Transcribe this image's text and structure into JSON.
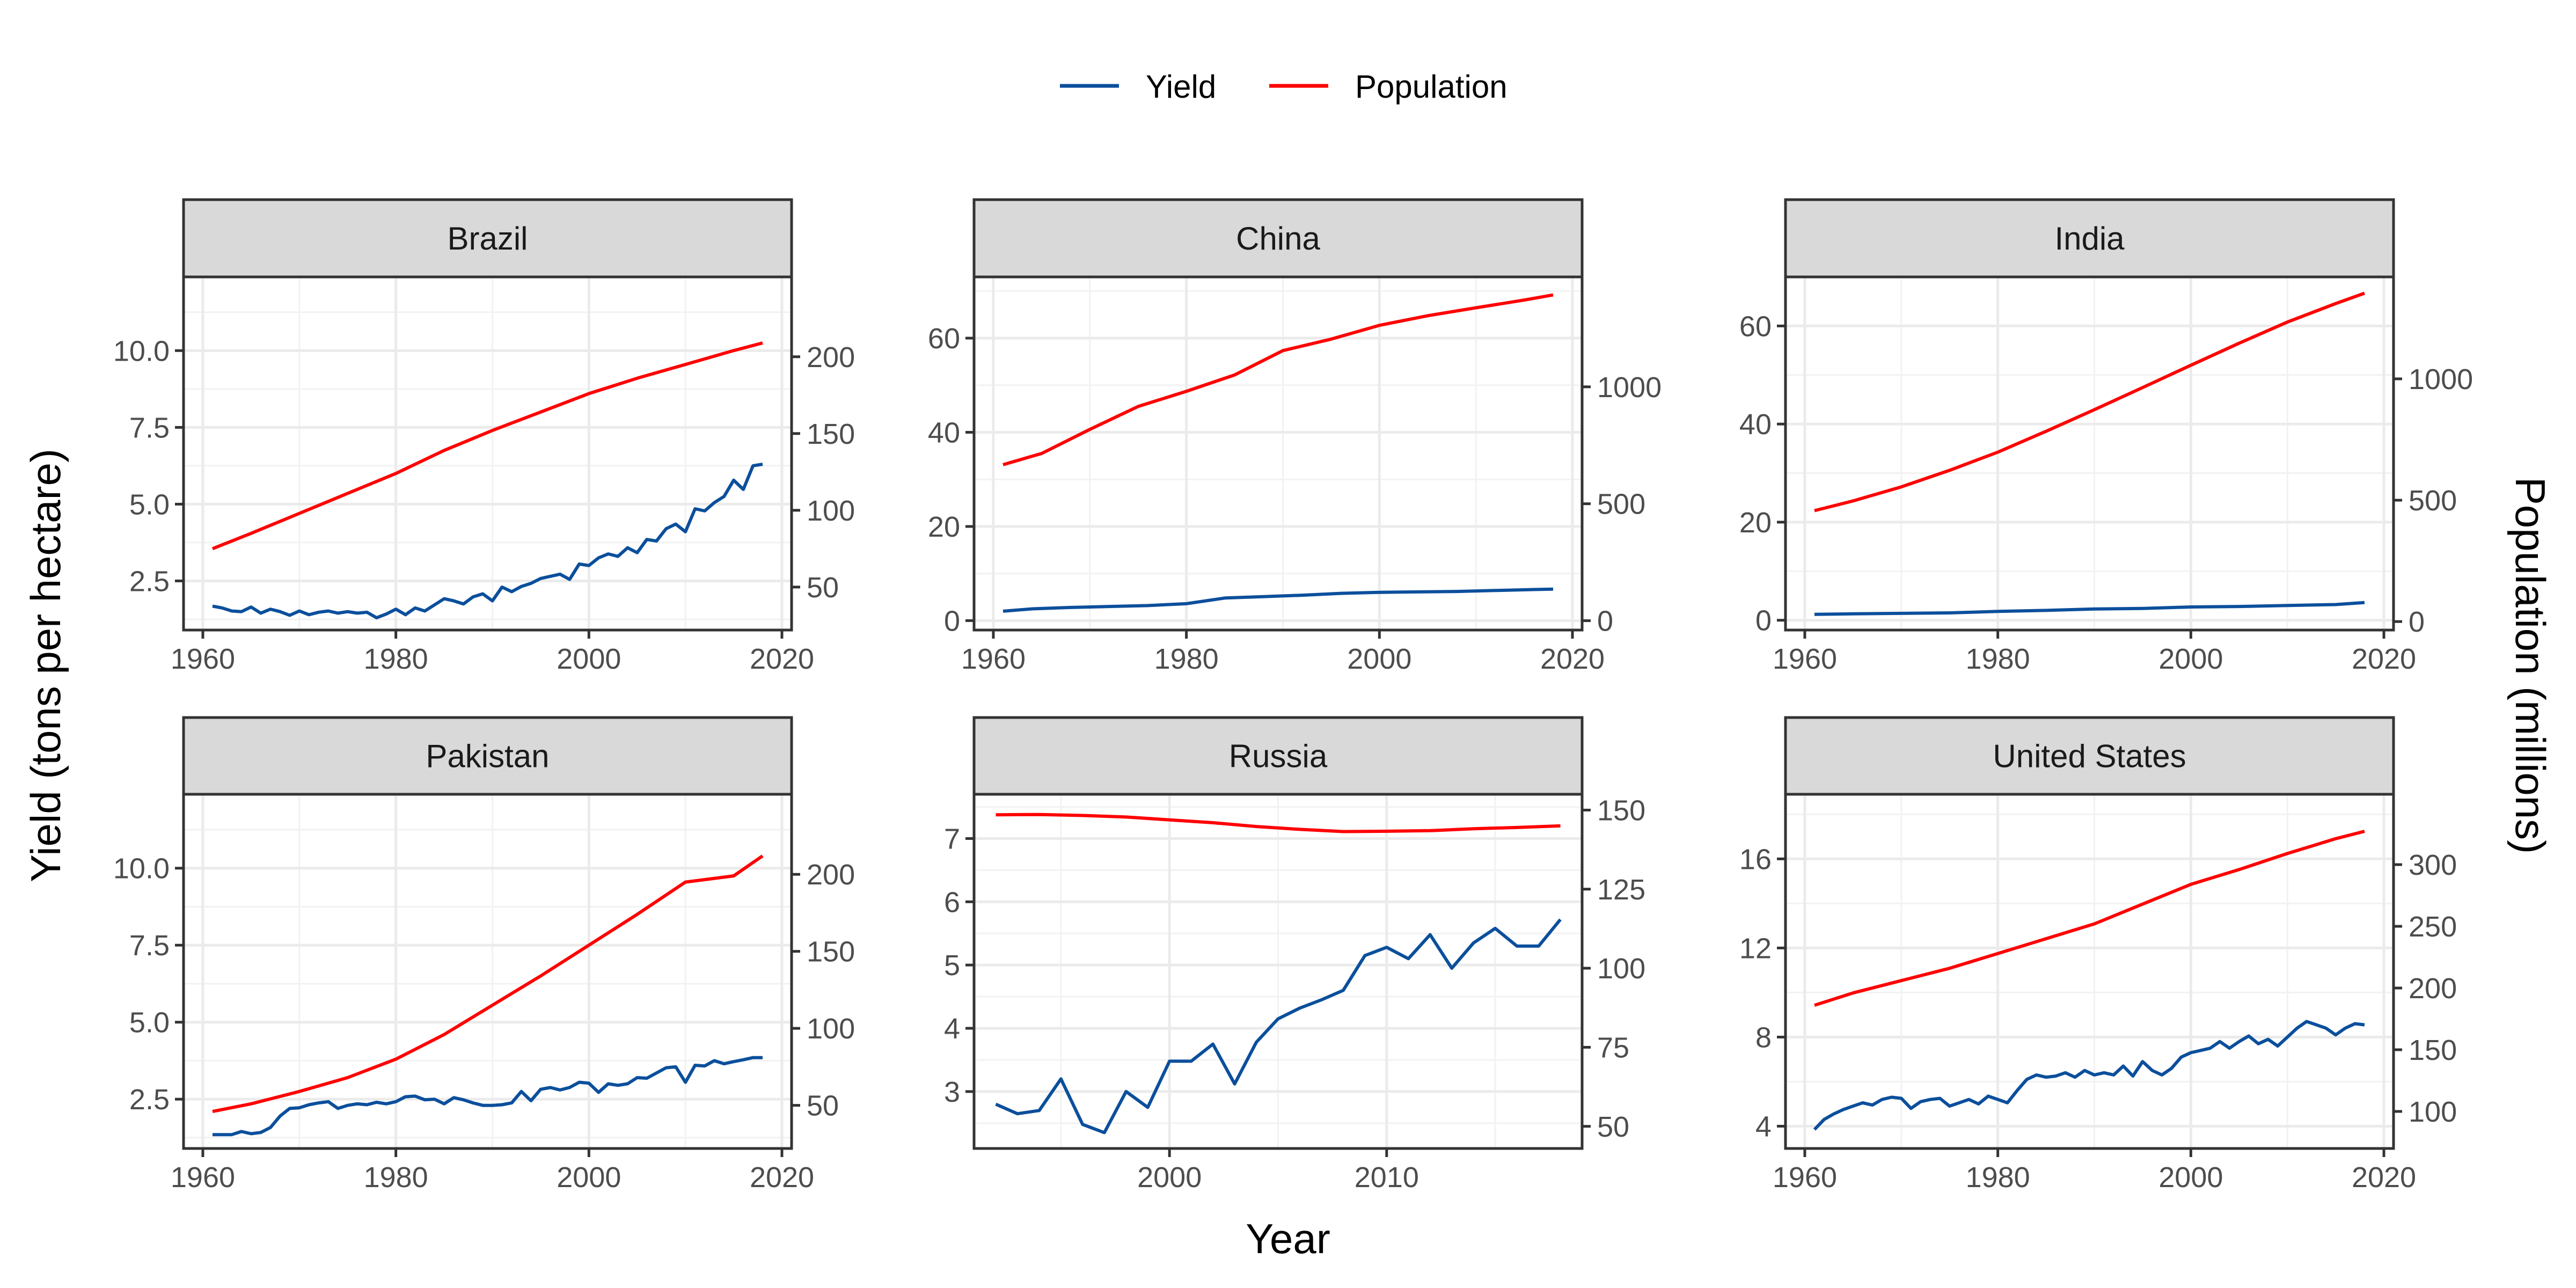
{
  "chart_data": {
    "type": "line",
    "title": "",
    "xlabel": "Year",
    "ylabel": "Yield (tons per hectare)",
    "ylabel_right": "Population (millions)",
    "grid": true,
    "legend_position": "top",
    "legend": [
      {
        "name": "Yield",
        "color": "#0b4f9c"
      },
      {
        "name": "Population",
        "color": "#ff0000"
      }
    ],
    "facets": [
      {
        "name": "Brazil",
        "xlim": [
          1958,
          2021
        ],
        "xticks": [
          1960,
          1980,
          2000,
          2020
        ],
        "ylim": [
          0.9,
          12.4
        ],
        "yticks": [
          2.5,
          5.0,
          7.5,
          10.0
        ],
        "ytick_labels": [
          "2.5",
          "5.0",
          "7.5",
          "10.0"
        ],
        "y2lim": [
          22,
          252
        ],
        "y2ticks": [
          50,
          100,
          150,
          200
        ],
        "yield": {
          "x": [
            1961,
            1962,
            1963,
            1964,
            1965,
            1966,
            1967,
            1968,
            1969,
            1970,
            1971,
            1972,
            1973,
            1974,
            1975,
            1976,
            1977,
            1978,
            1979,
            1980,
            1981,
            1982,
            1983,
            1984,
            1985,
            1986,
            1987,
            1988,
            1989,
            1990,
            1991,
            1992,
            1993,
            1994,
            1995,
            1996,
            1997,
            1998,
            1999,
            2000,
            2001,
            2002,
            2003,
            2004,
            2005,
            2006,
            2007,
            2008,
            2009,
            2010,
            2011,
            2012,
            2013,
            2014,
            2015,
            2016,
            2017,
            2018
          ],
          "y": [
            1.68,
            1.62,
            1.52,
            1.5,
            1.65,
            1.45,
            1.58,
            1.5,
            1.38,
            1.52,
            1.4,
            1.48,
            1.52,
            1.45,
            1.5,
            1.45,
            1.48,
            1.3,
            1.42,
            1.58,
            1.4,
            1.62,
            1.52,
            1.72,
            1.92,
            1.85,
            1.75,
            1.98,
            2.08,
            1.85,
            2.3,
            2.15,
            2.32,
            2.42,
            2.58,
            2.65,
            2.72,
            2.55,
            3.05,
            3.0,
            3.25,
            3.38,
            3.3,
            3.58,
            3.42,
            3.85,
            3.8,
            4.2,
            4.35,
            4.1,
            4.85,
            4.78,
            5.05,
            5.25,
            5.78,
            5.48,
            6.25,
            6.3
          ]
        },
        "population": {
          "x": [
            1961,
            1965,
            1970,
            1975,
            1980,
            1985,
            1990,
            1995,
            2000,
            2005,
            2010,
            2015,
            2018
          ],
          "y": [
            75,
            85,
            98,
            111,
            124,
            139,
            152,
            164,
            176,
            186,
            195,
            204,
            209
          ]
        }
      },
      {
        "name": "China",
        "xlim": [
          1958,
          2021
        ],
        "xticks": [
          1960,
          1980,
          2000,
          2020
        ],
        "ylim": [
          -2,
          73
        ],
        "yticks": [
          0,
          20,
          40,
          60
        ],
        "ytick_labels": [
          "0",
          "20",
          "40",
          "60"
        ],
        "y2lim": [
          -40,
          1470
        ],
        "y2ticks": [
          0,
          500,
          1000
        ],
        "yield": {
          "x": [
            1961,
            1964,
            1968,
            1972,
            1976,
            1980,
            1984,
            1988,
            1992,
            1996,
            2000,
            2004,
            2008,
            2012,
            2016,
            2018
          ],
          "y": [
            2.0,
            2.5,
            2.8,
            3.0,
            3.2,
            3.6,
            4.8,
            5.1,
            5.4,
            5.8,
            6.0,
            6.1,
            6.2,
            6.4,
            6.6,
            6.7
          ]
        },
        "population": {
          "x": [
            1961,
            1965,
            1970,
            1975,
            1980,
            1985,
            1990,
            1995,
            2000,
            2005,
            2010,
            2015,
            2018
          ],
          "y": [
            667,
            715,
            818,
            916,
            981,
            1051,
            1155,
            1204,
            1263,
            1304,
            1338,
            1371,
            1393
          ]
        }
      },
      {
        "name": "India",
        "xlim": [
          1958,
          2021
        ],
        "xticks": [
          1960,
          1980,
          2000,
          2020
        ],
        "ylim": [
          -2,
          70
        ],
        "yticks": [
          0,
          20,
          40,
          60
        ],
        "ytick_labels": [
          "0",
          "20",
          "40",
          "60"
        ],
        "y2lim": [
          -35,
          1420
        ],
        "y2ticks": [
          0,
          500,
          1000
        ],
        "yield": {
          "x": [
            1961,
            1965,
            1970,
            1975,
            1980,
            1985,
            1990,
            1995,
            2000,
            2005,
            2010,
            2015,
            2018
          ],
          "y": [
            1.2,
            1.3,
            1.4,
            1.5,
            1.8,
            2.0,
            2.3,
            2.4,
            2.7,
            2.8,
            3.0,
            3.2,
            3.6
          ]
        },
        "population": {
          "x": [
            1961,
            1965,
            1970,
            1975,
            1980,
            1985,
            1990,
            1995,
            2000,
            2005,
            2010,
            2015,
            2018
          ],
          "y": [
            457,
            497,
            555,
            623,
            698,
            784,
            873,
            964,
            1056,
            1147,
            1234,
            1310,
            1353
          ]
        }
      },
      {
        "name": "Pakistan",
        "xlim": [
          1958,
          2021
        ],
        "xticks": [
          1960,
          1980,
          2000,
          2020
        ],
        "ylim": [
          0.9,
          12.4
        ],
        "yticks": [
          2.5,
          5.0,
          7.5,
          10.0
        ],
        "ytick_labels": [
          "2.5",
          "5.0",
          "7.5",
          "10.0"
        ],
        "y2lim": [
          22,
          252
        ],
        "y2ticks": [
          50,
          100,
          150,
          200
        ],
        "yield": {
          "x": [
            1961,
            1962,
            1963,
            1964,
            1965,
            1966,
            1967,
            1968,
            1969,
            1970,
            1971,
            1972,
            1973,
            1974,
            1975,
            1976,
            1977,
            1978,
            1979,
            1980,
            1981,
            1982,
            1983,
            1984,
            1985,
            1986,
            1987,
            1988,
            1989,
            1990,
            1991,
            1992,
            1993,
            1994,
            1995,
            1996,
            1997,
            1998,
            1999,
            2000,
            2001,
            2002,
            2003,
            2004,
            2005,
            2006,
            2007,
            2008,
            2009,
            2010,
            2011,
            2012,
            2013,
            2014,
            2015,
            2016,
            2017,
            2018
          ],
          "y": [
            1.35,
            1.35,
            1.35,
            1.45,
            1.38,
            1.42,
            1.58,
            1.95,
            2.2,
            2.22,
            2.32,
            2.38,
            2.42,
            2.2,
            2.3,
            2.35,
            2.32,
            2.4,
            2.35,
            2.42,
            2.58,
            2.6,
            2.48,
            2.5,
            2.35,
            2.55,
            2.48,
            2.38,
            2.3,
            2.3,
            2.32,
            2.38,
            2.75,
            2.45,
            2.82,
            2.88,
            2.8,
            2.88,
            3.05,
            3.02,
            2.72,
            3.0,
            2.95,
            3.0,
            3.2,
            3.18,
            3.35,
            3.52,
            3.55,
            3.05,
            3.6,
            3.58,
            3.75,
            3.65,
            3.72,
            3.78,
            3.85,
            3.85
          ]
        },
        "population": {
          "x": [
            1961,
            1965,
            1970,
            1975,
            1980,
            1985,
            1990,
            1995,
            2000,
            2005,
            2010,
            2015,
            2018
          ],
          "y": [
            46,
            51,
            59,
            68,
            80,
            96,
            115,
            134,
            154,
            174,
            195,
            199,
            212
          ]
        }
      },
      {
        "name": "Russia",
        "xlim": [
          1991,
          2019
        ],
        "xticks": [
          2000,
          2010
        ],
        "ylim": [
          2.1,
          7.7
        ],
        "yticks": [
          3,
          4,
          5,
          6,
          7
        ],
        "ytick_labels": [
          "3",
          "4",
          "5",
          "6",
          "7"
        ],
        "y2lim": [
          43,
          155
        ],
        "y2ticks": [
          50,
          75,
          100,
          125,
          150
        ],
        "yield": {
          "x": [
            1992,
            1993,
            1994,
            1995,
            1996,
            1997,
            1998,
            1999,
            2000,
            2001,
            2002,
            2003,
            2004,
            2005,
            2006,
            2007,
            2008,
            2009,
            2010,
            2011,
            2012,
            2013,
            2014,
            2015,
            2016,
            2017,
            2018
          ],
          "y": [
            2.8,
            2.65,
            2.7,
            3.2,
            2.48,
            2.35,
            3.0,
            2.75,
            3.48,
            3.48,
            3.75,
            3.12,
            3.78,
            4.15,
            4.32,
            4.45,
            4.6,
            5.15,
            5.28,
            5.1,
            5.48,
            4.95,
            5.35,
            5.58,
            5.3,
            5.3,
            5.72
          ]
        },
        "population": {
          "x": [
            1992,
            1994,
            1996,
            1998,
            2000,
            2002,
            2004,
            2006,
            2008,
            2010,
            2012,
            2014,
            2016,
            2018
          ],
          "y": [
            148.5,
            148.6,
            148.3,
            147.8,
            146.9,
            146.0,
            144.8,
            143.9,
            143.2,
            143.3,
            143.5,
            144.1,
            144.5,
            145.0
          ]
        }
      },
      {
        "name": "United States",
        "xlim": [
          1958,
          2021
        ],
        "xticks": [
          1960,
          1980,
          2000,
          2020
        ],
        "ylim": [
          3.0,
          18.9
        ],
        "yticks": [
          4,
          8,
          12,
          16
        ],
        "ytick_labels": [
          "4",
          "8",
          "12",
          "16"
        ],
        "y2lim": [
          70,
          357
        ],
        "y2ticks": [
          100,
          150,
          200,
          250,
          300
        ],
        "yield": {
          "x": [
            1961,
            1962,
            1963,
            1964,
            1965,
            1966,
            1967,
            1968,
            1969,
            1970,
            1971,
            1972,
            1973,
            1974,
            1975,
            1976,
            1977,
            1978,
            1979,
            1980,
            1981,
            1982,
            1983,
            1984,
            1985,
            1986,
            1987,
            1988,
            1989,
            1990,
            1991,
            1992,
            1993,
            1994,
            1995,
            1996,
            1997,
            1998,
            1999,
            2000,
            2001,
            2002,
            2003,
            2004,
            2005,
            2006,
            2007,
            2008,
            2009,
            2010,
            2011,
            2012,
            2013,
            2014,
            2015,
            2016,
            2017,
            2018
          ],
          "y": [
            3.85,
            4.3,
            4.55,
            4.75,
            4.9,
            5.05,
            4.95,
            5.2,
            5.3,
            5.25,
            4.8,
            5.1,
            5.2,
            5.25,
            4.9,
            5.05,
            5.2,
            5.0,
            5.35,
            5.2,
            5.05,
            5.6,
            6.1,
            6.3,
            6.2,
            6.25,
            6.4,
            6.2,
            6.5,
            6.3,
            6.4,
            6.3,
            6.7,
            6.25,
            6.9,
            6.5,
            6.3,
            6.6,
            7.1,
            7.3,
            7.4,
            7.5,
            7.8,
            7.5,
            7.8,
            8.05,
            7.7,
            7.9,
            7.6,
            8.0,
            8.4,
            8.7,
            8.55,
            8.4,
            8.1,
            8.4,
            8.6,
            8.55
          ]
        },
        "population": {
          "x": [
            1961,
            1965,
            1970,
            1975,
            1980,
            1985,
            1990,
            1995,
            2000,
            2005,
            2010,
            2015,
            2018
          ],
          "y": [
            186,
            196,
            206,
            216,
            228,
            240,
            252,
            268,
            284,
            296,
            309,
            321,
            327
          ]
        }
      }
    ]
  }
}
